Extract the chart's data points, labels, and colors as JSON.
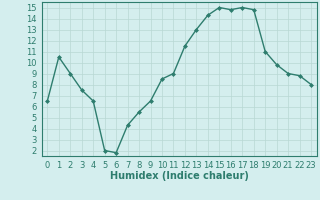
{
  "x": [
    0,
    1,
    2,
    3,
    4,
    5,
    6,
    7,
    8,
    9,
    10,
    11,
    12,
    13,
    14,
    15,
    16,
    17,
    18,
    19,
    20,
    21,
    22,
    23
  ],
  "y": [
    6.5,
    10.5,
    9.0,
    7.5,
    6.5,
    2.0,
    1.8,
    4.3,
    5.5,
    6.5,
    8.5,
    9.0,
    11.5,
    13.0,
    14.3,
    15.0,
    14.8,
    15.0,
    14.8,
    11.0,
    9.8,
    9.0,
    8.8,
    8.0
  ],
  "line_color": "#2e7d6e",
  "marker": "D",
  "marker_size": 2.0,
  "line_width": 1.0,
  "background_color": "#d4eeee",
  "grid_color": "#b8d8d4",
  "xlabel": "Humidex (Indice chaleur)",
  "xlabel_fontsize": 7,
  "tick_fontsize": 6,
  "xlim": [
    -0.5,
    23.5
  ],
  "ylim": [
    1.5,
    15.5
  ],
  "yticks": [
    2,
    3,
    4,
    5,
    6,
    7,
    8,
    9,
    10,
    11,
    12,
    13,
    14,
    15
  ],
  "xticks": [
    0,
    1,
    2,
    3,
    4,
    5,
    6,
    7,
    8,
    9,
    10,
    11,
    12,
    13,
    14,
    15,
    16,
    17,
    18,
    19,
    20,
    21,
    22,
    23
  ]
}
